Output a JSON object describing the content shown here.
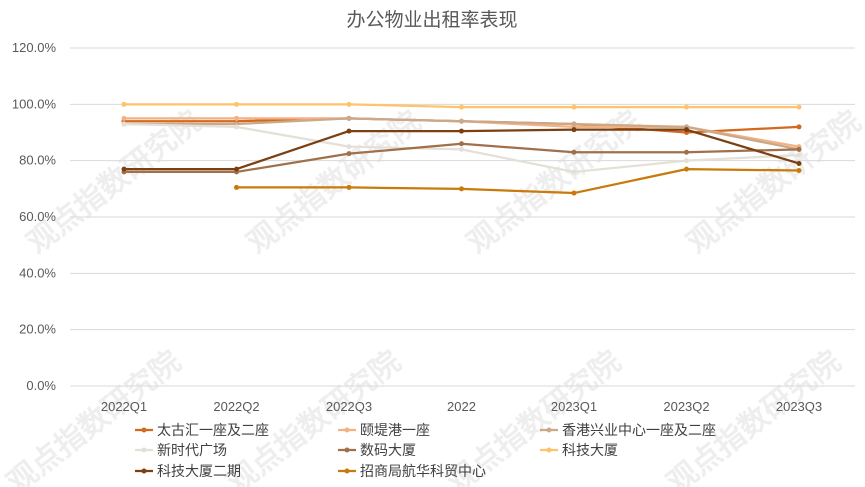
{
  "chart_data": {
    "type": "line",
    "title": "办公物业出租率表现",
    "categories": [
      "2022Q1",
      "2022Q2",
      "2022Q3",
      "2022",
      "2023Q1",
      "2023Q2",
      "2023Q3"
    ],
    "ylim": [
      0,
      120
    ],
    "yticks": [
      "0.0%",
      "20.0%",
      "40.0%",
      "60.0%",
      "80.0%",
      "100.0%",
      "120.0%"
    ],
    "ytick_values": [
      0,
      20,
      40,
      60,
      80,
      100,
      120
    ],
    "grid": true,
    "legend_position": "bottom",
    "series": [
      {
        "name": "太古汇一座及二座",
        "color": "#d2691e",
        "values": [
          94,
          94,
          95,
          94,
          93,
          90,
          92
        ]
      },
      {
        "name": "颐堤港一座",
        "color": "#f4b183",
        "values": [
          95,
          95,
          95,
          94,
          92,
          92,
          85
        ]
      },
      {
        "name": "香港兴业中心一座及二座",
        "color": "#c9a98a",
        "values": [
          93,
          93,
          95,
          94,
          93,
          92,
          84
        ]
      },
      {
        "name": "新时代广场",
        "color": "#e3e0d8",
        "values": [
          93,
          92,
          85,
          84,
          76,
          80,
          82
        ]
      },
      {
        "name": "数码大厦",
        "color": "#a0704a",
        "values": [
          76,
          76,
          82.5,
          86,
          83,
          83,
          84
        ]
      },
      {
        "name": "科技大厦",
        "color": "#ffc36b",
        "values": [
          100,
          100,
          100,
          99,
          99,
          99,
          99
        ]
      },
      {
        "name": "科技大厦二期",
        "color": "#7b3f10",
        "values": [
          77,
          77,
          90.5,
          90.5,
          91,
          91,
          79
        ]
      },
      {
        "name": "招商局航华科贸中心",
        "color": "#c87a0a",
        "values": [
          null,
          70.5,
          70.5,
          70,
          68.5,
          77,
          76.5
        ]
      }
    ]
  },
  "watermark_text": "观点指数研究院"
}
